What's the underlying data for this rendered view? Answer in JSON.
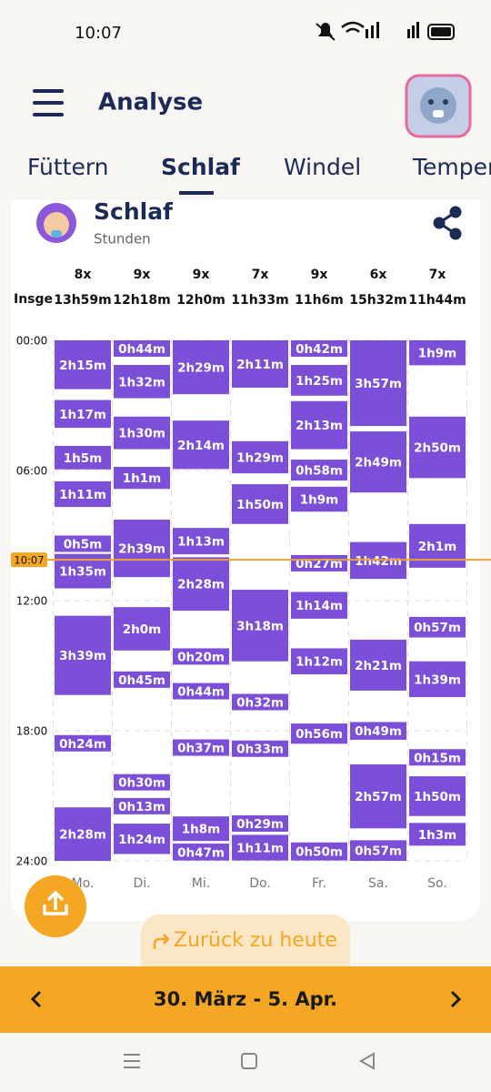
{
  "status_bar": {
    "time": "10:07"
  },
  "header": {
    "title": "Analyse"
  },
  "tabs": [
    "Füttern",
    "Schlaf",
    "Windel",
    "Temper"
  ],
  "chart_data": {
    "type": "sleep-timeline",
    "title": "Schlaf",
    "subtitle": "Stunden",
    "categories": [
      "Mo.",
      "Di.",
      "Mi.",
      "Do.",
      "Fr.",
      "Sa.",
      "So."
    ],
    "counts": [
      "8x",
      "9x",
      "9x",
      "7x",
      "9x",
      "6x",
      "7x"
    ],
    "totals_label": "Insge",
    "totals": [
      "13h59m",
      "12h18m",
      "12h0m",
      "11h33m",
      "11h6m",
      "15h32m",
      "11h44m"
    ],
    "ylim": [
      0,
      1440
    ],
    "yticks": [
      {
        "value": 0,
        "label": "00:00"
      },
      {
        "value": 360,
        "label": "06:00"
      },
      {
        "value": 720,
        "label": "12:00"
      },
      {
        "value": 1080,
        "label": "18:00"
      },
      {
        "value": 1440,
        "label": "24:00"
      }
    ],
    "now": {
      "value": 607,
      "label": "10:07"
    },
    "color": "#7c4fd8",
    "days": [
      {
        "blocks": [
          {
            "start": 0,
            "duration": 135,
            "label": "2h15m"
          },
          {
            "start": 165,
            "duration": 77,
            "label": "1h17m"
          },
          {
            "start": 292,
            "duration": 65,
            "label": "1h5m"
          },
          {
            "start": 390,
            "duration": 71,
            "label": "1h11m"
          },
          {
            "start": 540,
            "duration": 5,
            "label": "0h5m"
          },
          {
            "start": 591,
            "duration": 95,
            "label": "1h35m"
          },
          {
            "start": 762,
            "duration": 219,
            "label": "3h39m"
          },
          {
            "start": 1092,
            "duration": 24,
            "label": "0h24m"
          },
          {
            "start": 1292,
            "duration": 148,
            "label": "2h28m"
          }
        ]
      },
      {
        "blocks": [
          {
            "start": 0,
            "duration": 44,
            "label": "0h44m"
          },
          {
            "start": 68,
            "duration": 92,
            "label": "1h32m"
          },
          {
            "start": 211,
            "duration": 90,
            "label": "1h30m"
          },
          {
            "start": 350,
            "duration": 61,
            "label": "1h1m"
          },
          {
            "start": 496,
            "duration": 159,
            "label": "2h39m"
          },
          {
            "start": 738,
            "duration": 120,
            "label": "2h0m"
          },
          {
            "start": 916,
            "duration": 45,
            "label": "0h45m"
          },
          {
            "start": 1200,
            "duration": 30,
            "label": "0h30m"
          },
          {
            "start": 1266,
            "duration": 13,
            "label": "0h13m"
          },
          {
            "start": 1337,
            "duration": 84,
            "label": "1h24m"
          }
        ]
      },
      {
        "blocks": [
          {
            "start": 0,
            "duration": 149,
            "label": "2h29m"
          },
          {
            "start": 222,
            "duration": 134,
            "label": "2h14m"
          },
          {
            "start": 519,
            "duration": 73,
            "label": "1h13m"
          },
          {
            "start": 600,
            "duration": 148,
            "label": "2h28m"
          },
          {
            "start": 852,
            "duration": 20,
            "label": "0h20m"
          },
          {
            "start": 948,
            "duration": 44,
            "label": "0h44m"
          },
          {
            "start": 1104,
            "duration": 37,
            "label": "0h37m"
          },
          {
            "start": 1317,
            "duration": 68,
            "label": "1h8m"
          },
          {
            "start": 1392,
            "duration": 47,
            "label": "0h47m"
          }
        ]
      },
      {
        "blocks": [
          {
            "start": 0,
            "duration": 131,
            "label": "2h11m"
          },
          {
            "start": 279,
            "duration": 89,
            "label": "1h29m"
          },
          {
            "start": 398,
            "duration": 110,
            "label": "1h50m"
          },
          {
            "start": 690,
            "duration": 198,
            "label": "3h18m"
          },
          {
            "start": 978,
            "duration": 32,
            "label": "0h32m"
          },
          {
            "start": 1107,
            "duration": 33,
            "label": "0h33m"
          },
          {
            "start": 1314,
            "duration": 29,
            "label": "0h29m"
          },
          {
            "start": 1368,
            "duration": 71,
            "label": "1h11m"
          }
        ]
      },
      {
        "blocks": [
          {
            "start": 0,
            "duration": 42,
            "label": "0h42m"
          },
          {
            "start": 68,
            "duration": 85,
            "label": "1h25m"
          },
          {
            "start": 168,
            "duration": 133,
            "label": "2h13m"
          },
          {
            "start": 330,
            "duration": 58,
            "label": "0h58m"
          },
          {
            "start": 405,
            "duration": 69,
            "label": "1h9m"
          },
          {
            "start": 594,
            "duration": 27,
            "label": "0h27m"
          },
          {
            "start": 696,
            "duration": 74,
            "label": "1h14m"
          },
          {
            "start": 852,
            "duration": 72,
            "label": "1h12m"
          },
          {
            "start": 1060,
            "duration": 56,
            "label": "0h56m"
          },
          {
            "start": 1389,
            "duration": 50,
            "label": "0h50m"
          }
        ]
      },
      {
        "blocks": [
          {
            "start": 0,
            "duration": 237,
            "label": "3h57m"
          },
          {
            "start": 252,
            "duration": 169,
            "label": "2h49m"
          },
          {
            "start": 558,
            "duration": 102,
            "label": "1h42m"
          },
          {
            "start": 828,
            "duration": 141,
            "label": "2h21m"
          },
          {
            "start": 1056,
            "duration": 49,
            "label": "0h49m"
          },
          {
            "start": 1173,
            "duration": 177,
            "label": "2h57m"
          },
          {
            "start": 1383,
            "duration": 57,
            "label": "0h57m"
          }
        ]
      },
      {
        "blocks": [
          {
            "start": 0,
            "duration": 69,
            "label": "1h9m"
          },
          {
            "start": 211,
            "duration": 170,
            "label": "2h50m"
          },
          {
            "start": 508,
            "duration": 121,
            "label": "2h1m"
          },
          {
            "start": 765,
            "duration": 57,
            "label": "0h57m"
          },
          {
            "start": 888,
            "duration": 99,
            "label": "1h39m"
          },
          {
            "start": 1131,
            "duration": 15,
            "label": "0h15m"
          },
          {
            "start": 1206,
            "duration": 110,
            "label": "1h50m"
          },
          {
            "start": 1335,
            "duration": 63,
            "label": "1h3m"
          }
        ]
      }
    ]
  },
  "back_to_today": "Zurück zu heute",
  "date_range": "30. März - 5. Apr."
}
